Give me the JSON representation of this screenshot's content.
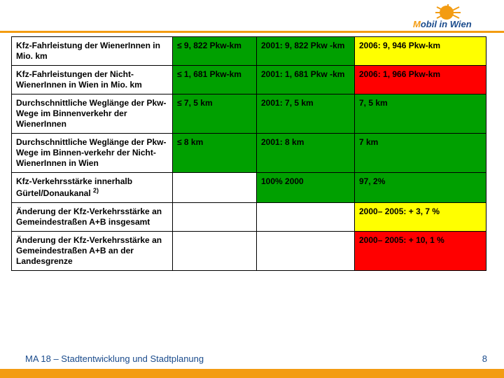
{
  "brand": {
    "logo_part1": "M",
    "logo_part2": "obil in Wien",
    "accent_color": "#f39c12",
    "brand_color": "#1a4b8c"
  },
  "table": {
    "colors": {
      "green": "#00a000",
      "yellow": "#ffff00",
      "red": "#ff0000"
    },
    "rows": [
      {
        "c1": "Kfz-Fahrleistung der WienerInnen in Mio. km",
        "c2": "≤ 9, 822 Pkw-km",
        "c3": "2001: 9, 822 Pkw -km",
        "c4": "2006: 9, 946 Pkw-km",
        "c2_bg": "green",
        "c3_bg": "green",
        "c4_bg": "yellow"
      },
      {
        "c1": "Kfz-Fahrleistungen der Nicht-WienerInnen in Wien in Mio. km",
        "c2": "≤ 1, 681 Pkw-km",
        "c3": "2001: 1, 681 Pkw -km",
        "c4": "2006: 1, 966 Pkw-km",
        "c2_bg": "green",
        "c3_bg": "green",
        "c4_bg": "red"
      },
      {
        "c1": "Durchschnittliche Weglänge der Pkw-Wege im Binnenverkehr der WienerInnen",
        "c2": "≤ 7, 5 km",
        "c3": "2001: 7, 5 km",
        "c4": "7, 5 km",
        "c2_bg": "green",
        "c3_bg": "green",
        "c4_bg": "green"
      },
      {
        "c1": "Durchschnittliche Weglänge der Pkw-Wege im Binnen-verkehr der Nicht-WienerInnen in Wien",
        "c2": "≤ 8 km",
        "c3": "2001: 8 km",
        "c4": "7 km",
        "c2_bg": "green",
        "c3_bg": "green",
        "c4_bg": "green"
      },
      {
        "c1_html": "Kfz-Verkehrsstärke innerhalb Gürtel/Donaukanal <sup>2)</sup>",
        "c2": "",
        "c3": "100% 2000",
        "c4": "97, 2%",
        "c2_bg": "",
        "c3_bg": "green",
        "c4_bg": "green"
      },
      {
        "c1": "Änderung der Kfz-Verkehrsstärke an Gemeindestraßen A+B insgesamt",
        "c2": "",
        "c3": "",
        "c4": "2000– 2005: + 3, 7 %",
        "c2_bg": "",
        "c3_bg": "",
        "c4_bg": "yellow"
      },
      {
        "c1": "Änderung der Kfz-Verkehrsstärke an Gemeindestraßen A+B an der Landesgrenze",
        "c2": "",
        "c3": "",
        "c4": "2000– 2005: + 10, 1 %",
        "c2_bg": "",
        "c3_bg": "",
        "c4_bg": "red"
      }
    ]
  },
  "footer": {
    "text": "MA 18 – Stadtentwicklung und Stadtplanung",
    "page": "8"
  }
}
